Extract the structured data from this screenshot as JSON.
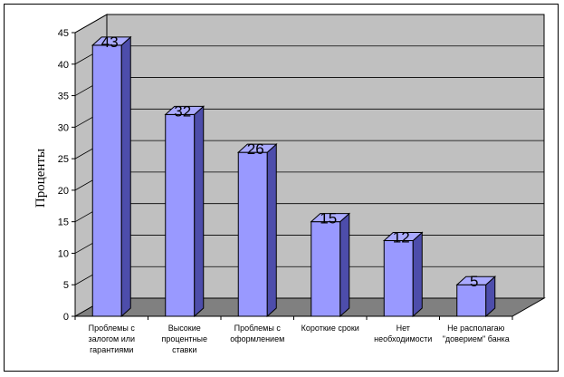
{
  "chart_data": {
    "type": "bar",
    "style": "3d-column",
    "categories": [
      [
        "Проблемы с",
        "залогом или",
        "гарантиями"
      ],
      [
        "Высокие",
        "процентные",
        "ставки"
      ],
      [
        "Проблемы с",
        "оформлением"
      ],
      [
        "Короткие сроки"
      ],
      [
        "Нет",
        "необходимости"
      ],
      [
        "Не располагаю",
        "\"доверием\" банка"
      ]
    ],
    "values": [
      43,
      32,
      26,
      15,
      12,
      5
    ],
    "data_labels": [
      "43",
      "32",
      "26",
      "15",
      "12",
      "5"
    ],
    "title": "",
    "xlabel": "",
    "ylabel": "Проценты",
    "ylim": [
      0,
      45
    ],
    "yticks": [
      "0",
      "5",
      "10",
      "15",
      "20",
      "25",
      "30",
      "35",
      "40",
      "45"
    ],
    "grid": true,
    "legend": "none",
    "colors": {
      "bar_front": "#9999ff",
      "bar_top": "#aaaaff",
      "bar_side": "#4d4dab",
      "wall": "#c0c0c0",
      "floor": "#808080",
      "grid": "#000000"
    }
  }
}
